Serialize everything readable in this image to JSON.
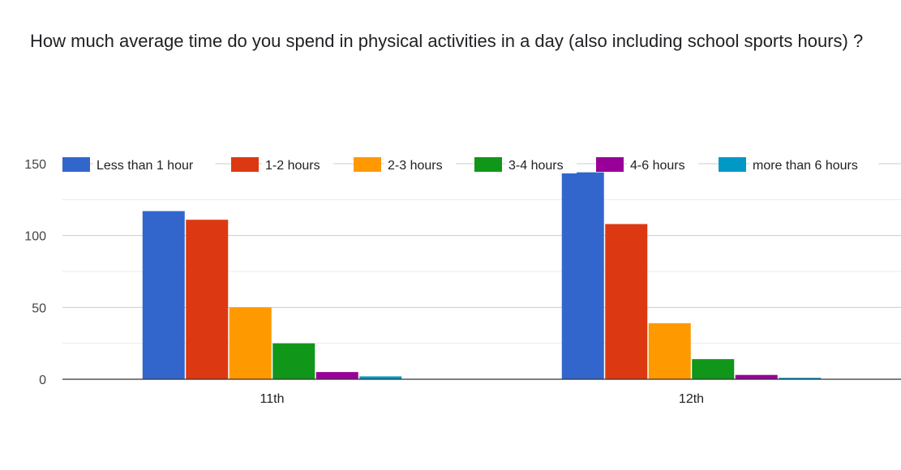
{
  "title": "How much average time do you spend in physical activities in a day (also including school sports hours)  ?",
  "chart_data": {
    "type": "bar",
    "title": "How much average time do you spend in physical activities in a day (also including school sports hours)  ?",
    "xlabel": "",
    "ylabel": "",
    "categories": [
      "11th",
      "12th"
    ],
    "ylim": [
      0,
      150
    ],
    "yticks": [
      0,
      50,
      100,
      150
    ],
    "grid": true,
    "legend_position": "top",
    "series": [
      {
        "name": "Less than 1 hour",
        "color": "#3366cc",
        "values": [
          117,
          144
        ]
      },
      {
        "name": "1-2 hours",
        "color": "#dc3912",
        "values": [
          111,
          108
        ]
      },
      {
        "name": "2-3 hours",
        "color": "#ff9900",
        "values": [
          50,
          39
        ]
      },
      {
        "name": "3-4 hours",
        "color": "#109618",
        "values": [
          25,
          14
        ]
      },
      {
        "name": "4-6 hours",
        "color": "#990099",
        "values": [
          5,
          3
        ]
      },
      {
        "name": "more than 6 hours",
        "color": "#0099c6",
        "values": [
          2,
          1
        ]
      }
    ]
  }
}
